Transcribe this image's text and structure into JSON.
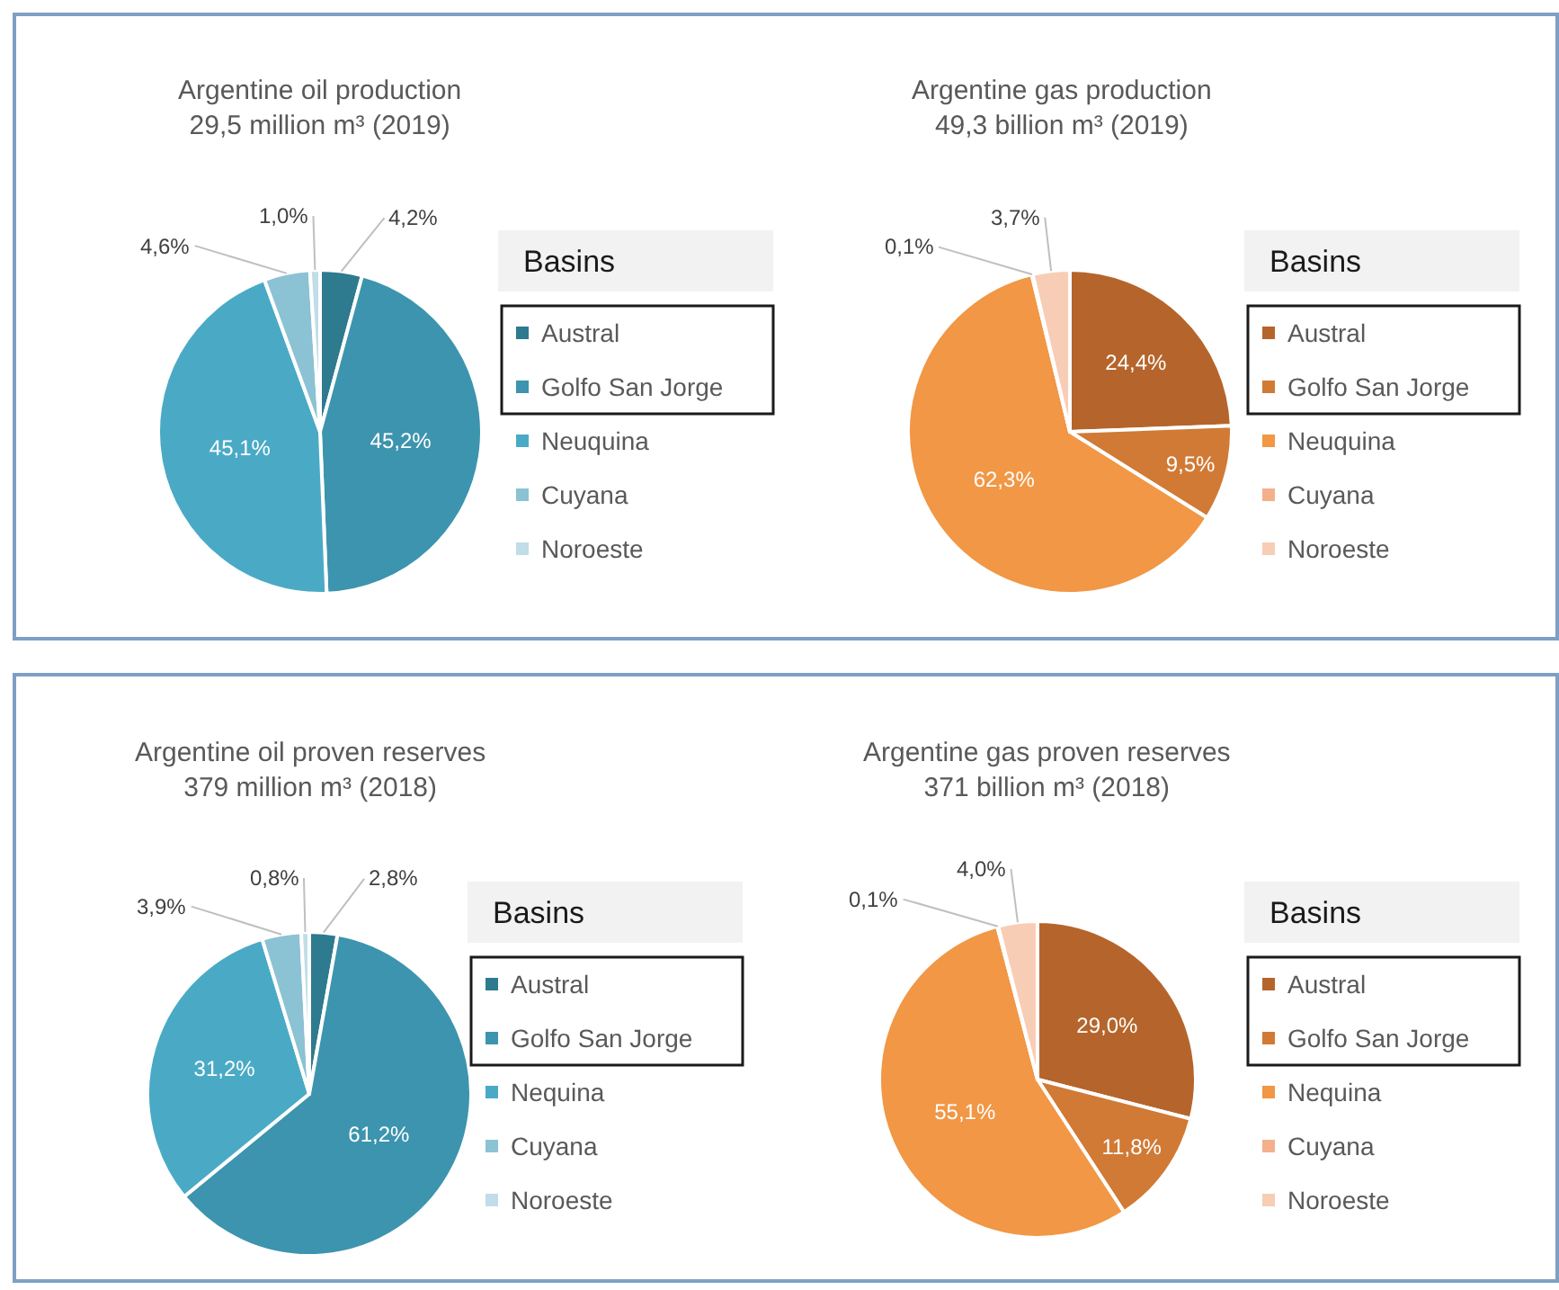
{
  "chart_data": [
    {
      "type": "pie",
      "title": "Argentine oil production",
      "subtitle": "29,5 million m³ (2019)",
      "legend_title": "Basins",
      "legend": "right",
      "categories": [
        "Austral",
        "Golfo San Jorge",
        "Neuquina",
        "Cuyana",
        "Noroeste"
      ],
      "values": [
        4.2,
        45.2,
        45.1,
        4.6,
        1.0
      ],
      "value_labels": [
        "4,2%",
        "45,2%",
        "45,1%",
        "4,6%",
        "1,0%"
      ],
      "colors": [
        "#2e7a8e",
        "#3d94ae",
        "#4aaac6",
        "#8bc2d4",
        "#c0dde8"
      ]
    },
    {
      "type": "pie",
      "title": "Argentine gas production",
      "subtitle": "49,3 billion m³ (2019)",
      "legend_title": "Basins",
      "legend": "right",
      "categories": [
        "Austral",
        "Golfo San Jorge",
        "Neuquina",
        "Cuyana",
        "Noroeste"
      ],
      "values": [
        24.4,
        9.5,
        62.3,
        0.1,
        3.7
      ],
      "value_labels": [
        "24,4%",
        "9,5%",
        "62,3%",
        "0,1%",
        "3,7%"
      ],
      "colors": [
        "#b5652b",
        "#d07a35",
        "#f19745",
        "#f4b08a",
        "#f8cdb5"
      ]
    },
    {
      "type": "pie",
      "title": "Argentine oil proven reserves",
      "subtitle": "379 million m³ (2018)",
      "legend_title": "Basins",
      "legend": "right",
      "categories": [
        "Austral",
        "Golfo San Jorge",
        "Nequina",
        "Cuyana",
        "Noroeste"
      ],
      "values": [
        2.8,
        61.2,
        31.2,
        3.9,
        0.8
      ],
      "value_labels": [
        "2,8%",
        "61,2%",
        "31,2%",
        "3,9%",
        "0,8%"
      ],
      "colors": [
        "#2e7a8e",
        "#3d94ae",
        "#4aaac6",
        "#8bc2d4",
        "#c0dde8"
      ]
    },
    {
      "type": "pie",
      "title": "Argentine gas proven reserves",
      "subtitle": "371 billion m³ (2018)",
      "legend_title": "Basins",
      "legend": "right",
      "categories": [
        "Austral",
        "Golfo San Jorge",
        "Nequina",
        "Cuyana",
        "Noroeste"
      ],
      "values": [
        29.0,
        11.8,
        55.1,
        0.1,
        4.0
      ],
      "value_labels": [
        "29,0%",
        "11,8%",
        "55,1%",
        "0,1%",
        "4,0%"
      ],
      "colors": [
        "#b5652b",
        "#d07a35",
        "#f19745",
        "#f4b08a",
        "#f8cdb5"
      ]
    }
  ]
}
